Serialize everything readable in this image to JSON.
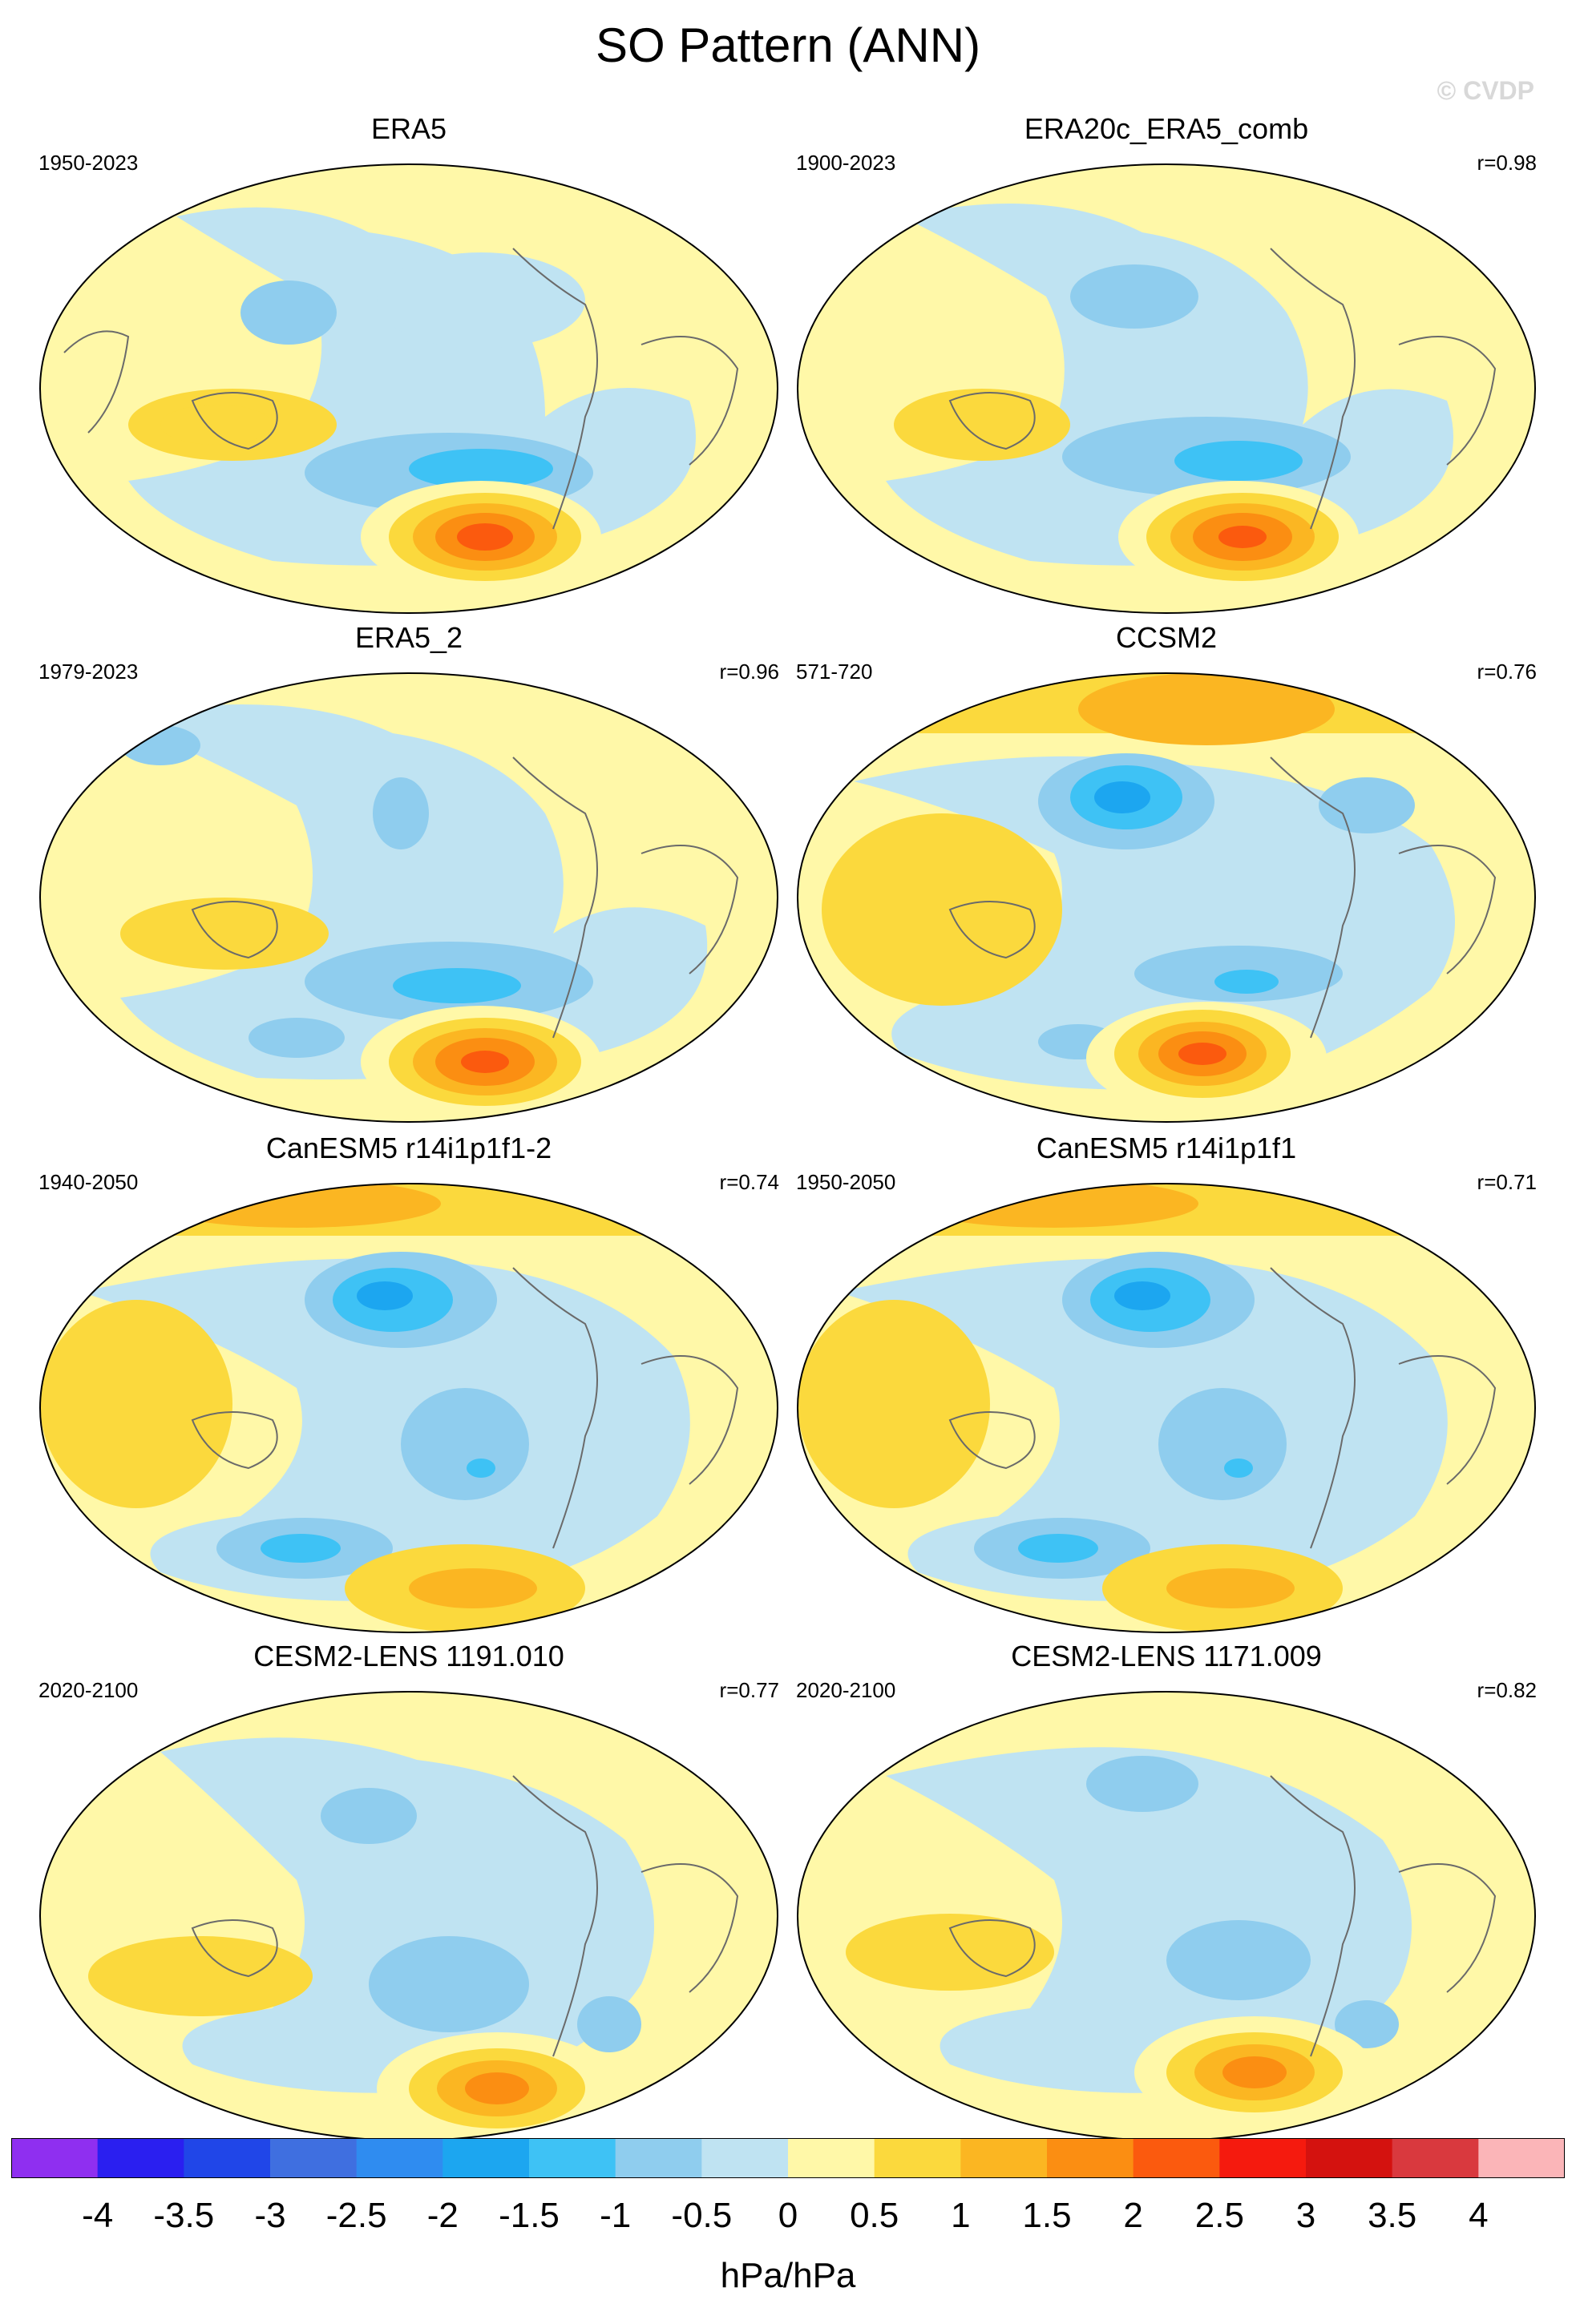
{
  "figure": {
    "title": "SO Pattern (ANN)",
    "watermark": "© CVDP",
    "units": "hPa/hPa"
  },
  "panels": [
    {
      "name": "ERA5",
      "years": "1950-2023",
      "r": ""
    },
    {
      "name": "ERA20c_ERA5_comb",
      "years": "1900-2023",
      "r": "r=0.98"
    },
    {
      "name": "ERA5_2",
      "years": "1979-2023",
      "r": "r=0.96"
    },
    {
      "name": "CCSM2",
      "years": "571-720",
      "r": "r=0.76"
    },
    {
      "name": "CanESM5 r14i1p1f1-2",
      "years": "1940-2050",
      "r": "r=0.74"
    },
    {
      "name": "CanESM5 r14i1p1f1",
      "years": "1950-2050",
      "r": "r=0.71"
    },
    {
      "name": "CESM2-LENS 1191.010",
      "years": "2020-2100",
      "r": "r=0.77"
    },
    {
      "name": "CESM2-LENS 1171.009",
      "years": "2020-2100",
      "r": "r=0.82"
    }
  ],
  "colorbar": {
    "colors": [
      "#8f2ff0",
      "#2a1ff0",
      "#2046e8",
      "#3f6fe0",
      "#2f8cf0",
      "#1ca6f0",
      "#3ec2f5",
      "#8fcdee",
      "#bfe3f2",
      "#fff8a8",
      "#fbd93d",
      "#fbb622",
      "#fb8e12",
      "#fb5a0e",
      "#f51a0e",
      "#d4120f",
      "#d9393e",
      "#fbb5b8"
    ],
    "labels": [
      "-4",
      "-3.5",
      "-3",
      "-2.5",
      "-2",
      "-1.5",
      "-1",
      "-0.5",
      "0",
      "0.5",
      "1",
      "1.5",
      "2",
      "2.5",
      "3",
      "3.5",
      "4"
    ]
  },
  "colors": {
    "land_outline": "#6a6a6a",
    "background": "#fff8a8"
  }
}
